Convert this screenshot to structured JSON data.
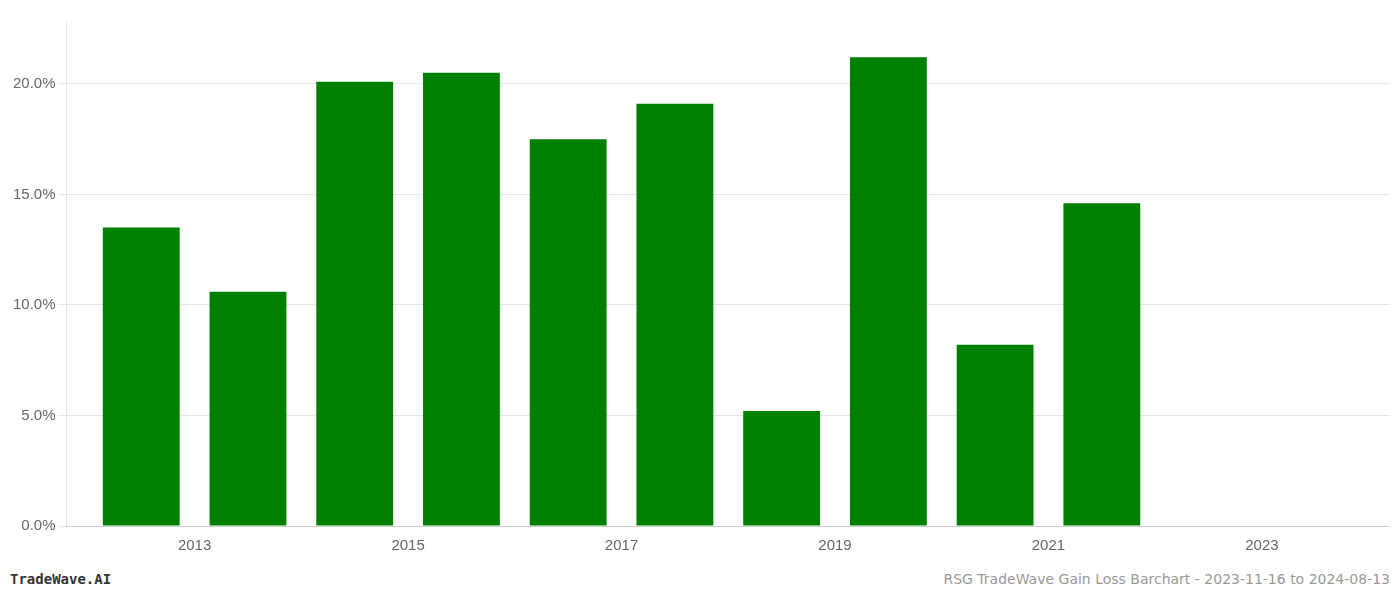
{
  "chart_data": {
    "type": "bar",
    "x": [
      2012.5,
      2013.5,
      2014.5,
      2015.5,
      2016.5,
      2017.5,
      2018.5,
      2019.5,
      2020.5,
      2021.5,
      2022.5
    ],
    "values": [
      0.135,
      0.106,
      0.201,
      0.205,
      0.175,
      0.191,
      0.052,
      0.212,
      0.082,
      0.146,
      0.0
    ],
    "color": "#008000",
    "xlim": [
      2011.8,
      2024.2
    ],
    "xticks": [
      2013,
      2015,
      2017,
      2019,
      2021,
      2023
    ],
    "ylim": [
      0,
      0.228
    ],
    "yticks": [
      {
        "value": 0.0,
        "label": "0.0%"
      },
      {
        "value": 0.05,
        "label": "5.0%"
      },
      {
        "value": 0.1,
        "label": "10.0%"
      },
      {
        "value": 0.15,
        "label": "15.0%"
      },
      {
        "value": 0.2,
        "label": "20.0%"
      }
    ],
    "grid": true,
    "annotations": [
      "TradeWave.AI",
      "RSG TradeWave Gain Loss Barchart - 2023-11-16 to 2024-08-13"
    ]
  }
}
